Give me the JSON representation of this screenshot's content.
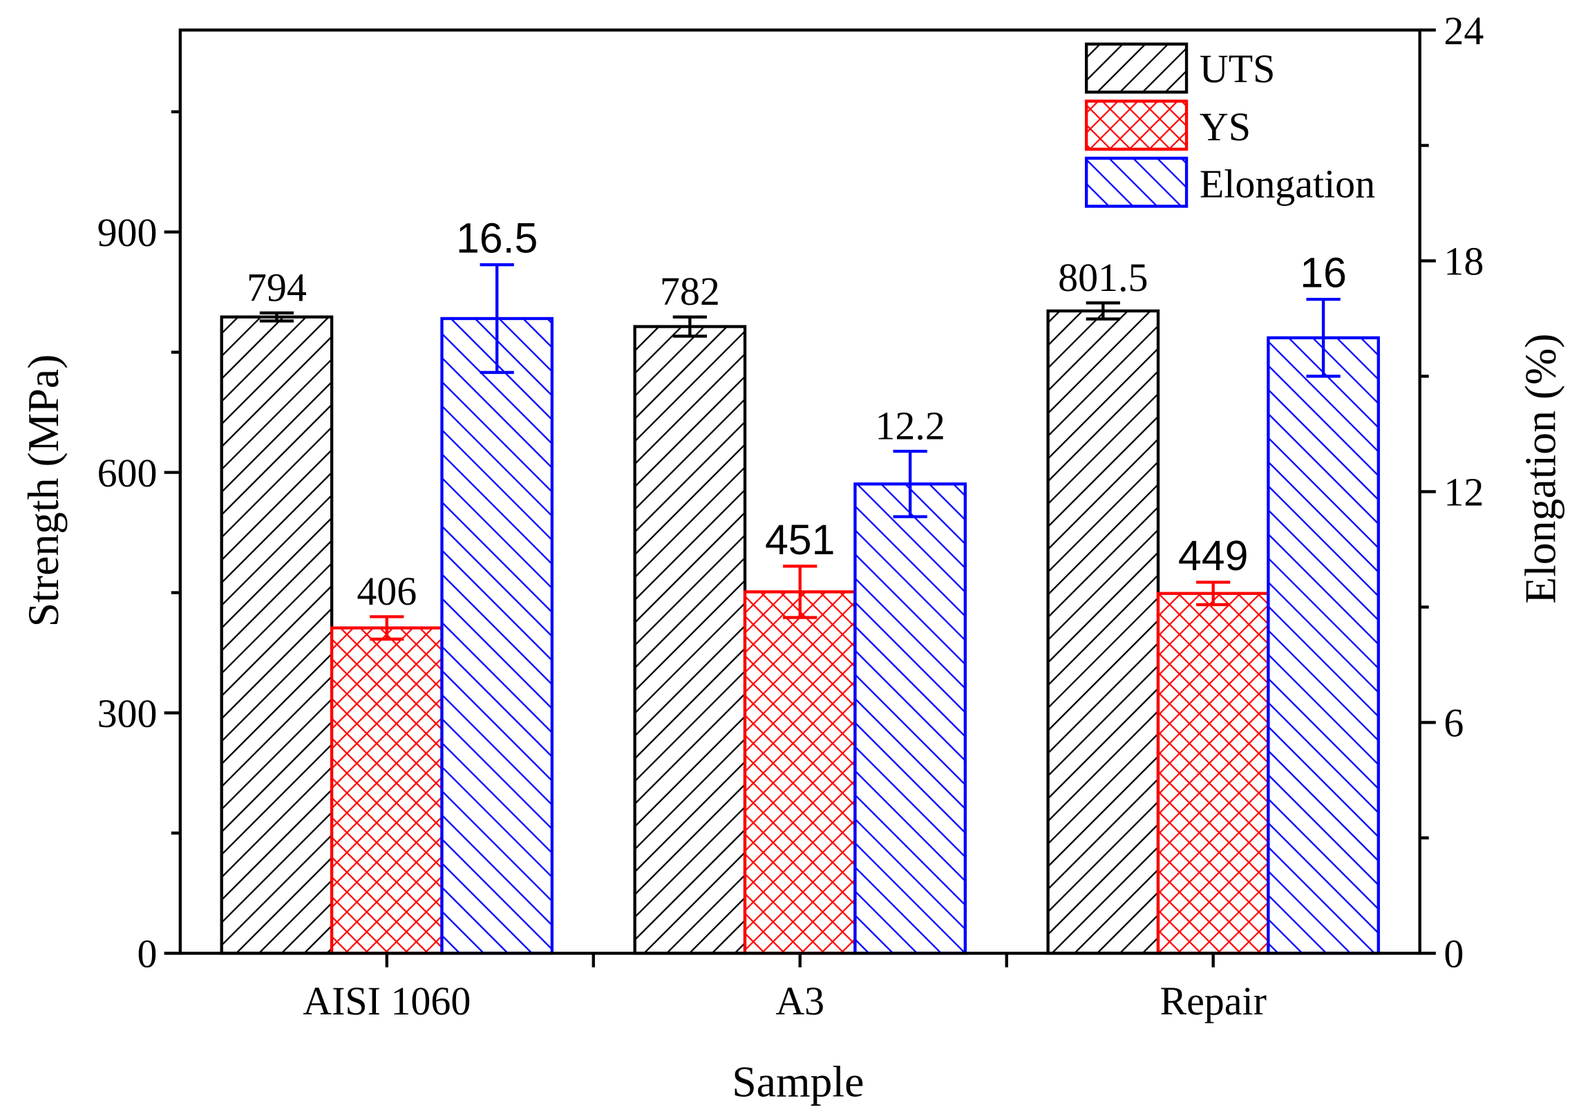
{
  "chart_data": {
    "type": "bar",
    "categories": [
      "AISI 1060",
      "A3",
      "Repair"
    ],
    "series": [
      {
        "name": "UTS",
        "axis": "left",
        "values": [
          794,
          782,
          801.5
        ],
        "errors": [
          5,
          12,
          10
        ],
        "labels": [
          "794",
          "782",
          "801.5"
        ],
        "color": "#000000"
      },
      {
        "name": "YS",
        "axis": "left",
        "values": [
          406,
          451,
          449
        ],
        "errors": [
          14,
          32,
          14
        ],
        "labels": [
          "406",
          "451",
          "449"
        ],
        "color": "#ff0000"
      },
      {
        "name": "Elongation",
        "axis": "right",
        "values": [
          16.5,
          12.2,
          16
        ],
        "errors": [
          1.4,
          0.85,
          1.0
        ],
        "labels": [
          "16.5",
          "12.2",
          "16"
        ],
        "color": "#0000ff"
      }
    ],
    "xlabel": "Sample",
    "ylabel": "Strength (MPa)",
    "y2label": "Elongation (%)",
    "ylim": [
      0,
      1152
    ],
    "y2lim": [
      0,
      24
    ],
    "yticks": [
      0,
      300,
      600,
      900
    ],
    "y2ticks": [
      0,
      6,
      12,
      18,
      24
    ]
  }
}
